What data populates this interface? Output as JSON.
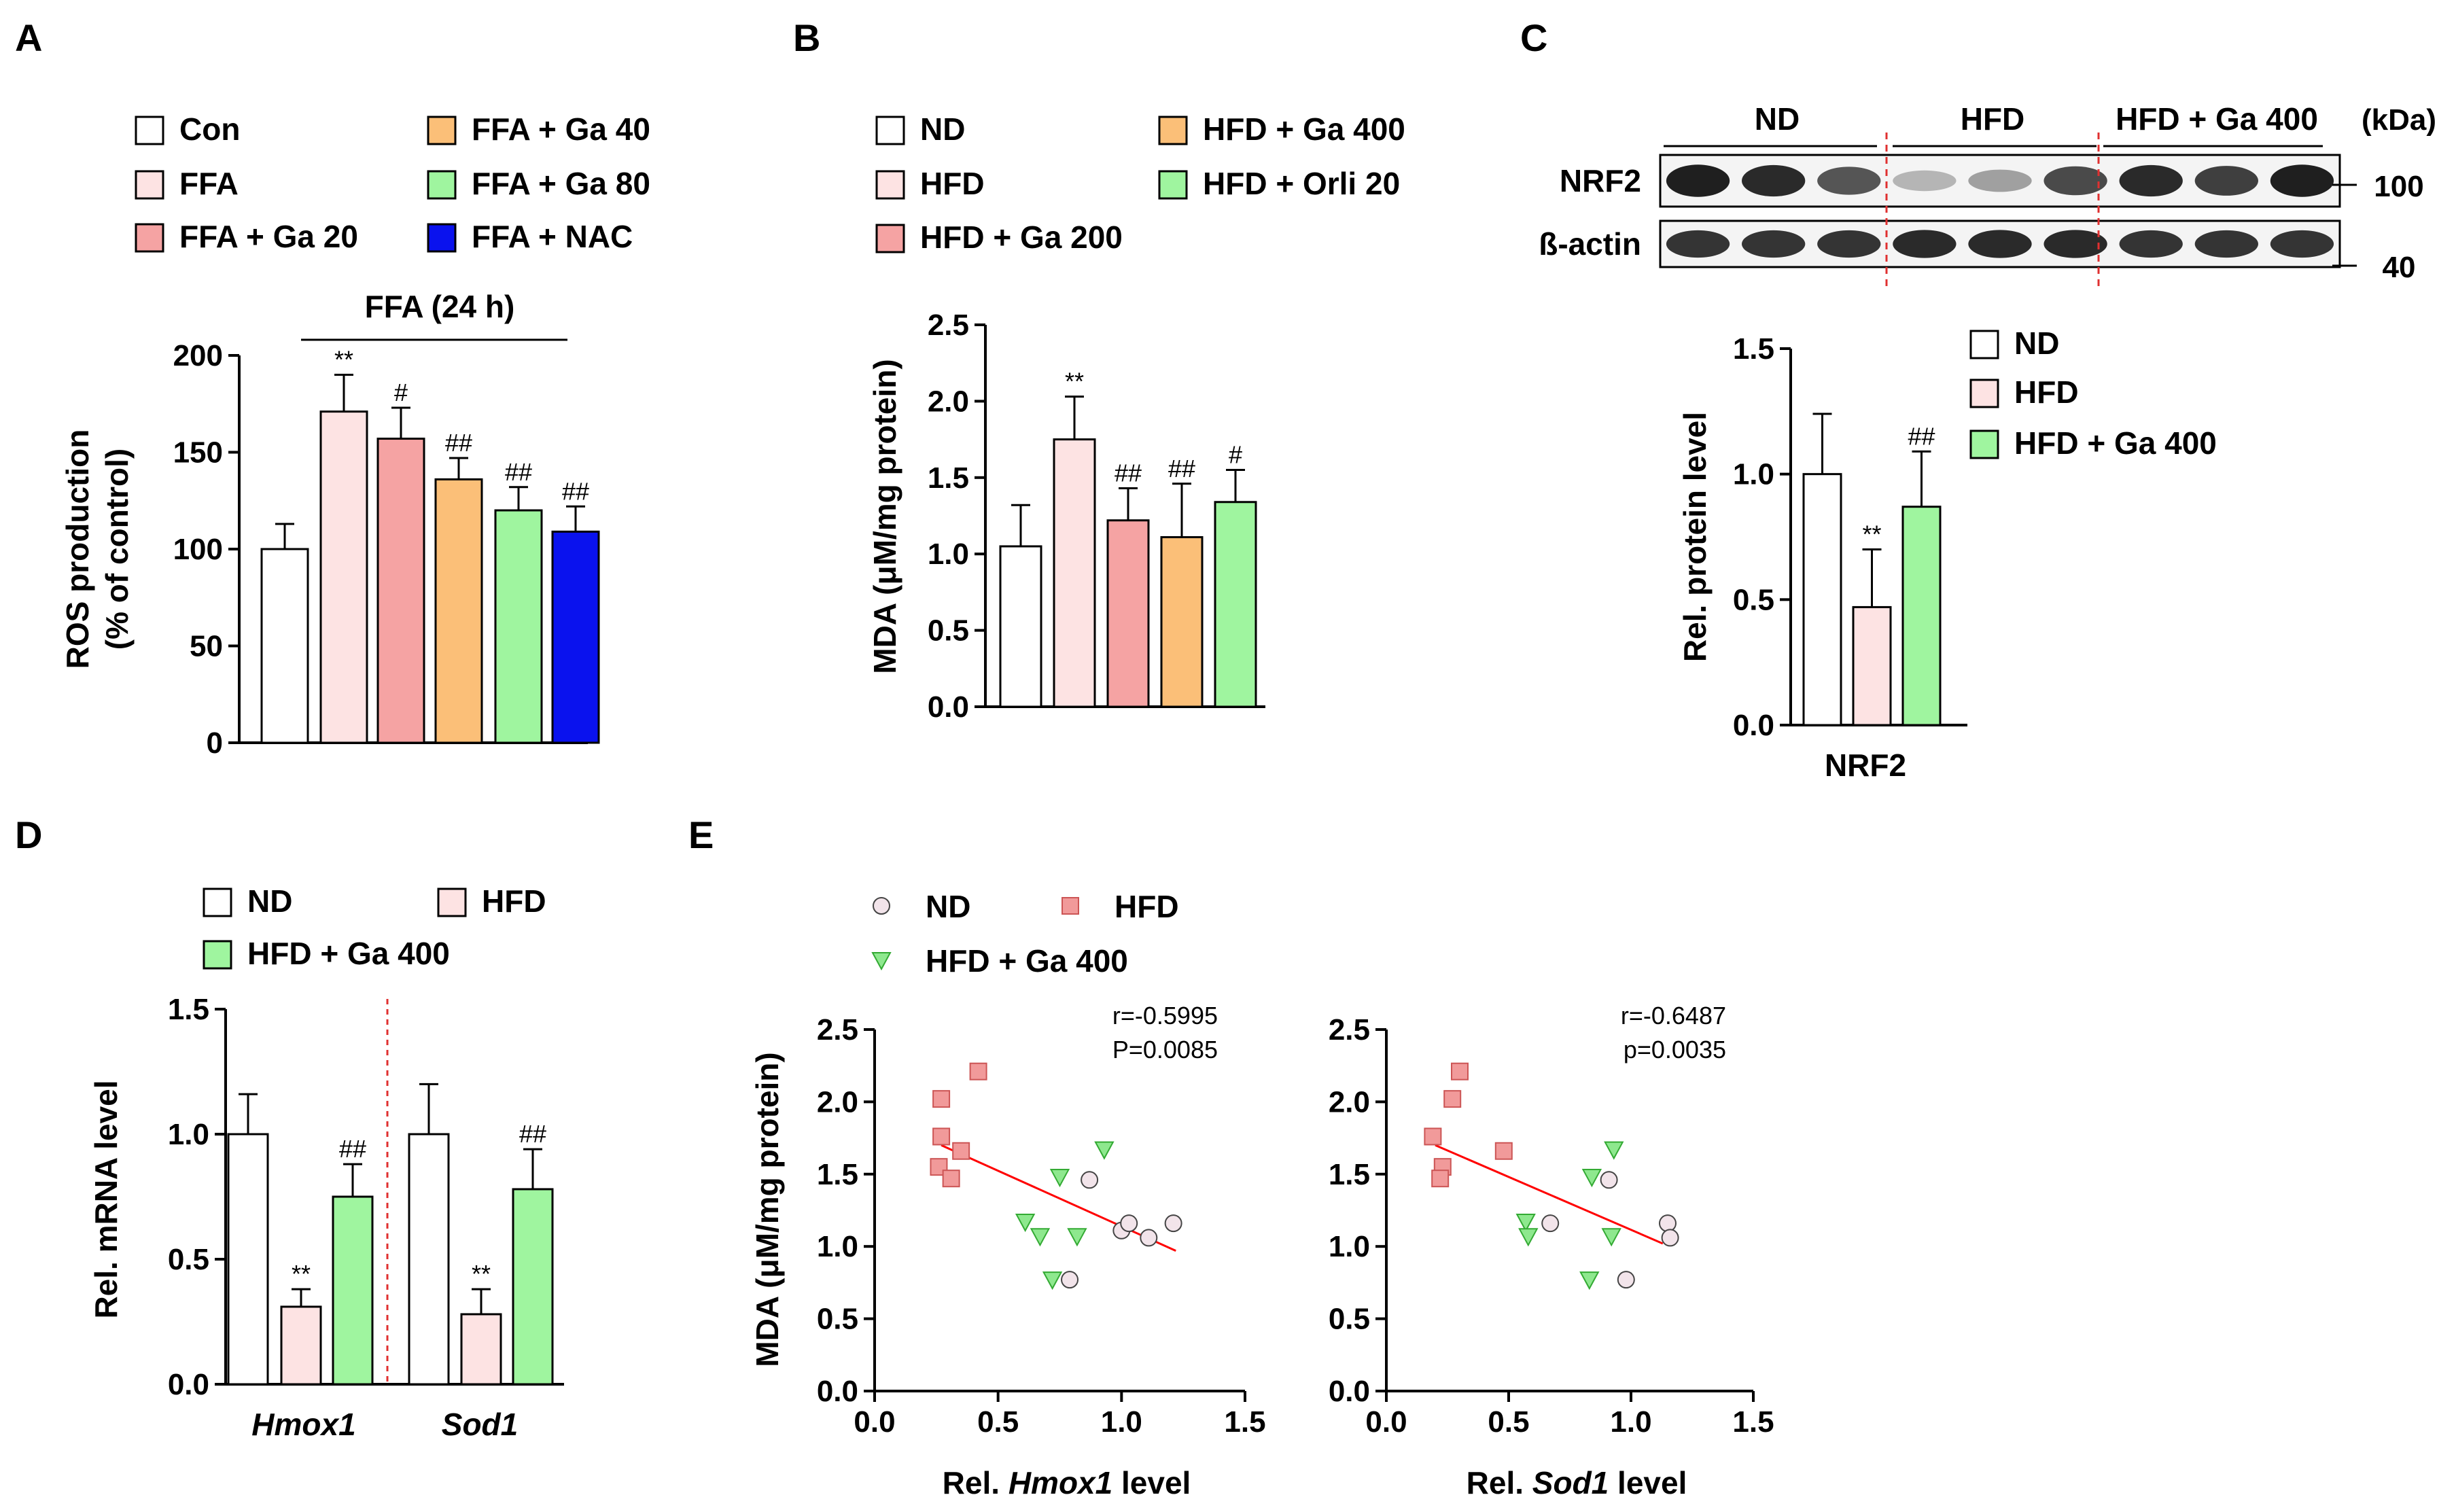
{
  "panels": {
    "A": {
      "letter": "A"
    },
    "B": {
      "letter": "B"
    },
    "C": {
      "letter": "C"
    },
    "D": {
      "letter": "D"
    },
    "E": {
      "letter": "E"
    }
  },
  "blot": {
    "groups": [
      "ND",
      "HFD",
      "HFD + Ga 400"
    ],
    "kda_label": "(kDa)",
    "rows": [
      {
        "name": "NRF2",
        "kda": "100",
        "intensity": [
          0.95,
          0.9,
          0.7,
          0.25,
          0.35,
          0.75,
          0.9,
          0.8,
          0.95
        ]
      },
      {
        "name": "ß-actin",
        "kda": "40",
        "intensity": [
          0.85,
          0.85,
          0.85,
          0.9,
          0.9,
          0.9,
          0.85,
          0.85,
          0.85
        ]
      }
    ]
  },
  "colors": {
    "white": "#ffffff",
    "pink": "#fde3e3",
    "red": "#f5a3a3",
    "orange": "#fbbf78",
    "green": "#9ff59f",
    "blue": "#0a12ee",
    "ndpt": "#f2e4ea",
    "hfdpt": "#f19a9a",
    "gapt": "#8ee88e",
    "fit": "#ff0000"
  },
  "chart_data": [
    {
      "id": "A",
      "type": "bar",
      "ylabel": [
        "ROS production",
        "(% of control)"
      ],
      "ylim": [
        0,
        200
      ],
      "yticks": [
        0,
        50,
        100,
        150,
        200
      ],
      "bracket_label": "FFA (24 h)",
      "categories": [
        "Con",
        "FFA",
        "FFA + Ga 20",
        "FFA + Ga 40",
        "FFA + Ga 80",
        "FFA + NAC"
      ],
      "values": [
        100,
        171,
        157,
        136,
        120,
        109
      ],
      "errors": [
        13,
        19,
        16,
        11,
        12,
        13
      ],
      "sig": [
        "",
        "**",
        "#",
        "##",
        "##",
        "##"
      ],
      "colorKeys": [
        "white",
        "pink",
        "red",
        "orange",
        "green",
        "blue"
      ],
      "legend": [
        "Con",
        "FFA",
        "FFA + Ga 20",
        "FFA + Ga 40",
        "FFA + Ga 80",
        "FFA + NAC"
      ]
    },
    {
      "id": "B",
      "type": "bar",
      "ylabel": [
        "MDA (μM/mg protein)"
      ],
      "ylim": [
        0,
        2.5
      ],
      "yticks": [
        "0.0",
        "0.5",
        "1.0",
        "1.5",
        "2.0",
        "2.5"
      ],
      "categories": [
        "ND",
        "HFD",
        "HFD + Ga 200",
        "HFD + Ga 400",
        "HFD + Orli 20"
      ],
      "values": [
        1.05,
        1.75,
        1.22,
        1.11,
        1.34
      ],
      "errors": [
        0.27,
        0.28,
        0.21,
        0.35,
        0.21
      ],
      "sig": [
        "",
        "**",
        "##",
        "##",
        "#"
      ],
      "colorKeys": [
        "white",
        "pink",
        "red",
        "orange",
        "green"
      ],
      "legend": [
        "ND",
        "HFD",
        "HFD + Ga 200",
        "HFD + Ga 400",
        "HFD + Orli 20"
      ]
    },
    {
      "id": "C",
      "type": "bar",
      "ylabel": [
        "Rel. protein level"
      ],
      "ylim": [
        0,
        1.5
      ],
      "yticks": [
        "0.0",
        "0.5",
        "1.0",
        "1.5"
      ],
      "xlabel": "NRF2",
      "categories": [
        "ND",
        "HFD",
        "HFD + Ga 400"
      ],
      "values": [
        1.0,
        0.47,
        0.87
      ],
      "errors": [
        0.24,
        0.23,
        0.22
      ],
      "sig": [
        "",
        "**",
        "##"
      ],
      "colorKeys": [
        "white",
        "pink",
        "green"
      ],
      "legend": [
        "ND",
        "HFD",
        "HFD + Ga 400"
      ]
    },
    {
      "id": "D",
      "type": "bar",
      "ylabel": [
        "Rel. mRNA level"
      ],
      "ylim": [
        0,
        1.5
      ],
      "yticks": [
        "0.0",
        "0.5",
        "1.0",
        "1.5"
      ],
      "groups": [
        "Hmox1",
        "Sod1"
      ],
      "series": [
        {
          "name": "ND",
          "values": [
            1.0,
            1.0
          ],
          "errors": [
            0.16,
            0.2
          ],
          "sig": [
            "",
            ""
          ],
          "colorKey": "white"
        },
        {
          "name": "HFD",
          "values": [
            0.31,
            0.28
          ],
          "errors": [
            0.07,
            0.1
          ],
          "sig": [
            "**",
            "**"
          ],
          "colorKey": "pink"
        },
        {
          "name": "HFD + Ga 400",
          "values": [
            0.75,
            0.78
          ],
          "errors": [
            0.13,
            0.16
          ],
          "sig": [
            "##",
            "##"
          ],
          "colorKey": "green"
        }
      ],
      "legend": [
        "ND",
        "HFD",
        "HFD + Ga 400"
      ]
    },
    {
      "id": "E1",
      "type": "scatter",
      "ylabel": [
        "MDA (μM/mg protein)"
      ],
      "xlabel_pre": "Rel. ",
      "xlabel_it": "Hmox1",
      "xlabel_post": " level",
      "xlim": [
        0,
        1.5
      ],
      "ylim": [
        0,
        2.5
      ],
      "xticks": [
        "0.0",
        "0.5",
        "1.0",
        "1.5"
      ],
      "yticks": [
        "0.0",
        "0.5",
        "1.0",
        "1.5",
        "2.0",
        "2.5"
      ],
      "stats": [
        "r=-0.5995",
        "P=0.0085"
      ],
      "fit": {
        "x0": 0.27,
        "y0": 1.7,
        "x1": 1.22,
        "y1": 0.97
      },
      "series": [
        {
          "name": "ND",
          "marker": "circle",
          "colorKey": "ndpt",
          "points": [
            [
              0.87,
              1.46
            ],
            [
              1.0,
              1.11
            ],
            [
              1.03,
              1.16
            ],
            [
              1.11,
              1.06
            ],
            [
              1.21,
              1.16
            ],
            [
              0.79,
              0.77
            ]
          ]
        },
        {
          "name": "HFD",
          "marker": "square",
          "colorKey": "hfdpt",
          "points": [
            [
              0.27,
              2.02
            ],
            [
              0.42,
              2.21
            ],
            [
              0.27,
              1.76
            ],
            [
              0.35,
              1.66
            ],
            [
              0.26,
              1.55
            ],
            [
              0.31,
              1.47
            ]
          ]
        },
        {
          "name": "HFD + Ga 400",
          "marker": "triangle",
          "colorKey": "gapt",
          "points": [
            [
              0.75,
              1.48
            ],
            [
              0.93,
              1.67
            ],
            [
              0.61,
              1.17
            ],
            [
              0.67,
              1.07
            ],
            [
              0.82,
              1.07
            ],
            [
              0.72,
              0.77
            ]
          ]
        }
      ],
      "legend": [
        "ND",
        "HFD",
        "HFD + Ga 400"
      ]
    },
    {
      "id": "E2",
      "type": "scatter",
      "ylabel": [
        "MDA (μM/mg protein)"
      ],
      "xlabel_pre": "Rel. ",
      "xlabel_it": "Sod1",
      "xlabel_post": " level",
      "xlim": [
        0,
        1.5
      ],
      "ylim": [
        0,
        2.5
      ],
      "xticks": [
        "0.0",
        "0.5",
        "1.0",
        "1.5"
      ],
      "yticks": [
        "0.0",
        "0.5",
        "1.0",
        "1.5",
        "2.0",
        "2.5"
      ],
      "stats": [
        "r=-0.6487",
        "p=0.0035"
      ],
      "fit": {
        "x0": 0.2,
        "y0": 1.7,
        "x1": 1.13,
        "y1": 1.02
      },
      "series": [
        {
          "name": "ND",
          "marker": "circle",
          "colorKey": "ndpt",
          "points": [
            [
              0.91,
              1.46
            ],
            [
              1.15,
              1.16
            ],
            [
              1.16,
              1.06
            ],
            [
              0.67,
              1.16
            ],
            [
              0.98,
              0.77
            ]
          ]
        },
        {
          "name": "HFD",
          "marker": "square",
          "colorKey": "hfdpt",
          "points": [
            [
              0.3,
              2.21
            ],
            [
              0.27,
              2.02
            ],
            [
              0.19,
              1.76
            ],
            [
              0.48,
              1.66
            ],
            [
              0.23,
              1.55
            ],
            [
              0.22,
              1.47
            ]
          ]
        },
        {
          "name": "HFD + Ga 400",
          "marker": "triangle",
          "colorKey": "gapt",
          "points": [
            [
              0.93,
              1.67
            ],
            [
              0.84,
              1.48
            ],
            [
              0.57,
              1.17
            ],
            [
              0.58,
              1.07
            ],
            [
              0.92,
              1.07
            ],
            [
              0.83,
              0.77
            ]
          ]
        }
      ]
    }
  ]
}
